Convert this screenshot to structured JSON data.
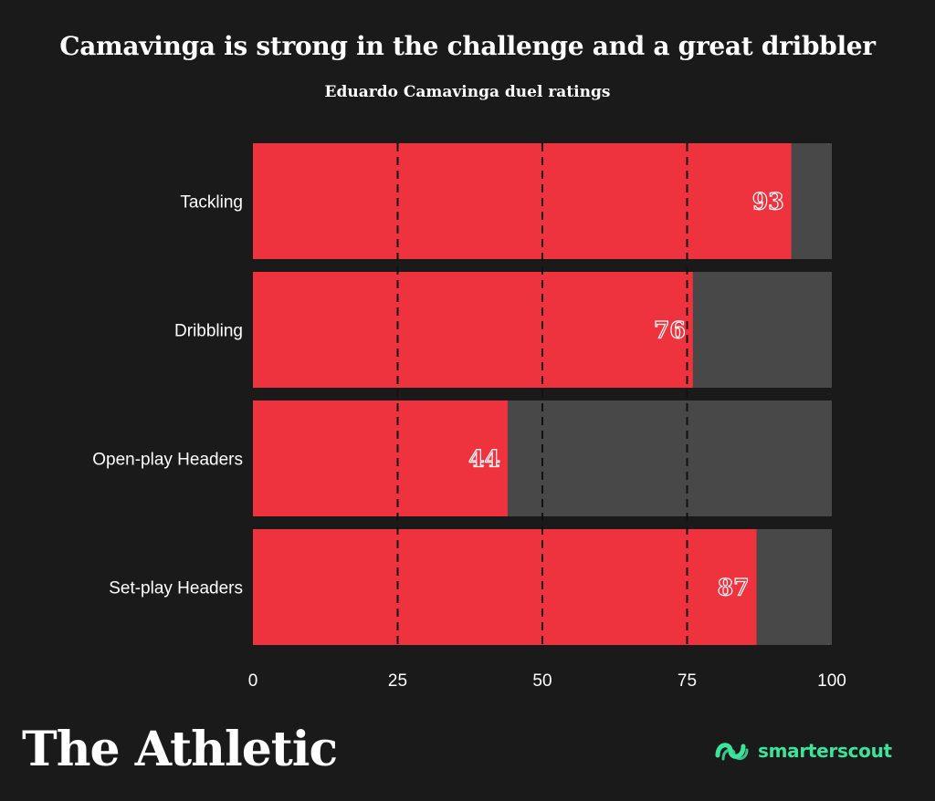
{
  "header": {
    "title": "Camavinga is strong in the challenge and a great dribbler",
    "subtitle": "Eduardo Camavinga duel ratings"
  },
  "chart_data": {
    "type": "bar",
    "orientation": "horizontal",
    "categories": [
      "Tackling",
      "Dribbling",
      "Open-play Headers",
      "Set-play Headers"
    ],
    "values": [
      93,
      76,
      44,
      87
    ],
    "xlim": [
      0,
      100
    ],
    "xticks": [
      0,
      25,
      50,
      75,
      100
    ],
    "xtick_labels": [
      "0",
      "25",
      "50",
      "75",
      "100"
    ],
    "gridlines": [
      25,
      50,
      75
    ],
    "grid_style": "dashed",
    "bar_color": "#ee323e",
    "track_color": "#484848",
    "background_color": "#1a1a1a"
  },
  "footer": {
    "brand": "The Athletic",
    "partner": "smarterscout",
    "partner_color": "#3ee39a"
  }
}
